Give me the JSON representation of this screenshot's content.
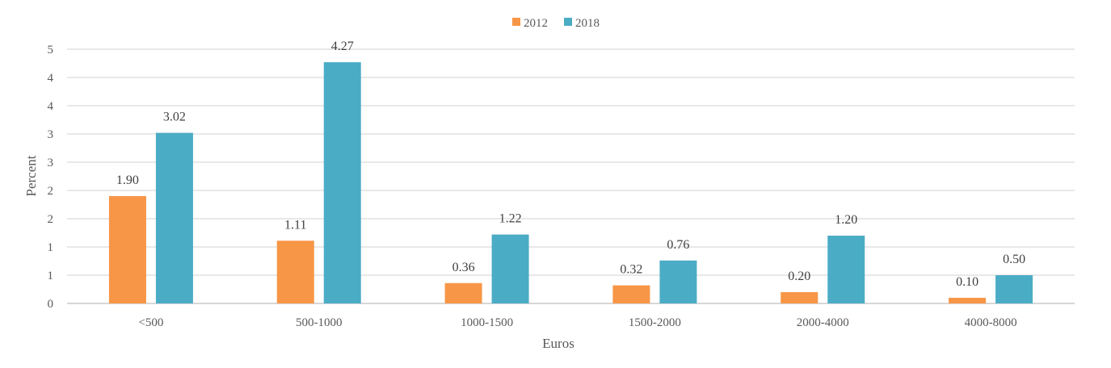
{
  "chart_data": {
    "type": "bar",
    "categories": [
      "<500",
      "500-1000",
      "1000-1500",
      "1500-2000",
      "2000-4000",
      "4000-8000"
    ],
    "series": [
      {
        "name": "2012",
        "values": [
          1.9,
          1.11,
          0.36,
          0.32,
          0.2,
          0.1
        ],
        "labels": [
          "1.90",
          "1.11",
          "0.36",
          "0.32",
          "0.20",
          "0.10"
        ],
        "color": "#F79646"
      },
      {
        "name": "2018",
        "values": [
          3.02,
          4.27,
          1.22,
          0.76,
          1.2,
          0.5
        ],
        "labels": [
          "3.02",
          "4.27",
          "1.22",
          "0.76",
          "1.20",
          "0.50"
        ],
        "color": "#4BACC6"
      }
    ],
    "yticks": [
      "0",
      "1",
      "1",
      "2",
      "2",
      "3",
      "3",
      "4",
      "4",
      "5"
    ],
    "xlabel": "Euros",
    "ylabel": "Percent",
    "ylim": [
      0,
      4.5
    ],
    "grid": true,
    "legend": "top-center"
  }
}
